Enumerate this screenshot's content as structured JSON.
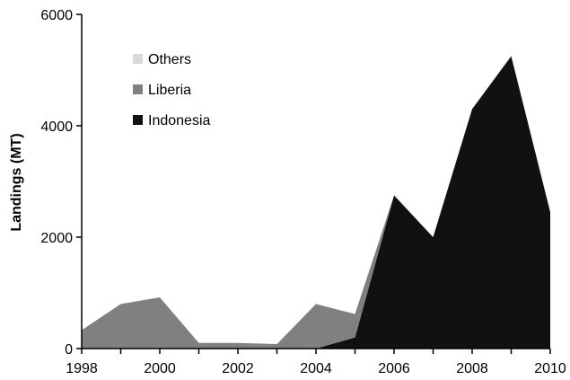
{
  "chart_data": {
    "type": "area",
    "stacked": true,
    "x": [
      1998,
      1999,
      2000,
      2001,
      2002,
      2003,
      2004,
      2005,
      2006,
      2007,
      2008,
      2009,
      2010
    ],
    "series": [
      {
        "name": "Indonesia",
        "color": "#111111",
        "values": [
          0,
          0,
          0,
          0,
          0,
          0,
          0,
          200,
          2750,
          2000,
          4300,
          5250,
          2450
        ]
      },
      {
        "name": "Liberia",
        "color": "#808080",
        "values": [
          330,
          800,
          920,
          100,
          100,
          80,
          800,
          420,
          0,
          0,
          0,
          0,
          0
        ]
      },
      {
        "name": "Others",
        "color": "#d9d9d9",
        "values": [
          0,
          0,
          0,
          0,
          0,
          0,
          0,
          0,
          20,
          0,
          0,
          0,
          0
        ]
      }
    ],
    "legend_order": [
      "Others",
      "Liberia",
      "Indonesia"
    ],
    "legend_position": "top-left",
    "xlim": [
      1998,
      2010
    ],
    "ylim": [
      0,
      6000
    ],
    "xticks": [
      "1998",
      "2000",
      "2002",
      "2004",
      "2006",
      "2008",
      "2010"
    ],
    "yticks": [
      "0",
      "2000",
      "4000",
      "6000"
    ],
    "xlabel": "",
    "ylabel": "Landings (MT)",
    "grid": false
  }
}
